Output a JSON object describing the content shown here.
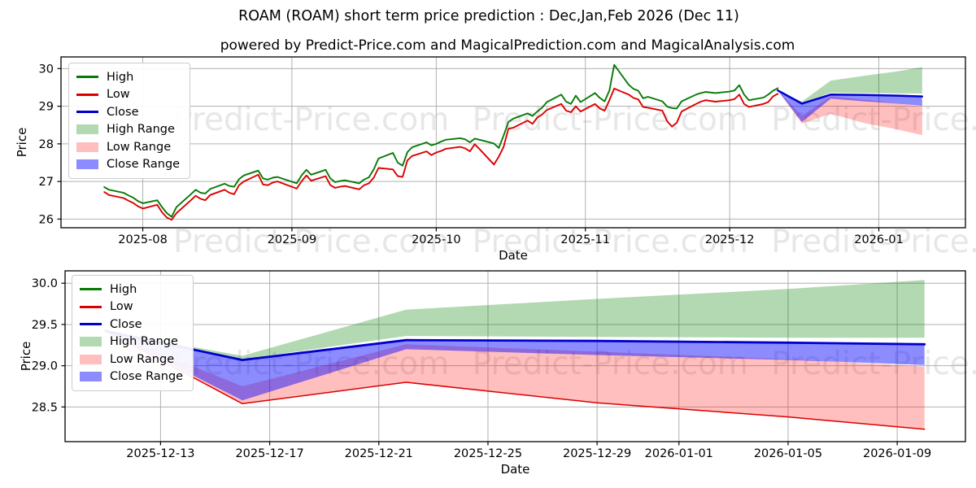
{
  "title": "ROAM (ROAM) short term price prediction : Dec,Jan,Feb 2026 (Dec 11)",
  "subtitle": "powered by Predict-Price.com and MagicalPrediction.com and MagicalAnalysis.com",
  "watermark": {
    "text": "Predict-Price.com",
    "repeats": 3,
    "color": "#e7e7e7"
  },
  "colors": {
    "high_line": "#077a07",
    "low_line": "#dd0000",
    "close_line": "#0000cc",
    "high_fill": "rgba(0,128,0,0.30)",
    "low_fill": "rgba(255,0,0,0.25)",
    "close_fill": "rgba(0,0,255,0.45)",
    "grid": "#b0b0b0",
    "spine": "#000000"
  },
  "legend": {
    "items": [
      {
        "label": "High",
        "type": "line",
        "color": "#077a07"
      },
      {
        "label": "Low",
        "type": "line",
        "color": "#dd0000"
      },
      {
        "label": "Close",
        "type": "line",
        "color": "#0000cc"
      },
      {
        "label": "High Range",
        "type": "patch",
        "color": "rgba(0,128,0,0.30)"
      },
      {
        "label": "Low Range",
        "type": "patch",
        "color": "rgba(255,0,0,0.25)"
      },
      {
        "label": "Close Range",
        "type": "patch",
        "color": "rgba(0,0,255,0.45)"
      }
    ]
  },
  "chart_data": {
    "type": "line",
    "historical": {
      "series_names": [
        "High",
        "Low"
      ],
      "dates": [
        "2025-07-24",
        "2025-07-25",
        "2025-07-28",
        "2025-07-29",
        "2025-07-30",
        "2025-07-31",
        "2025-08-01",
        "2025-08-04",
        "2025-08-05",
        "2025-08-06",
        "2025-08-07",
        "2025-08-08",
        "2025-08-11",
        "2025-08-12",
        "2025-08-13",
        "2025-08-14",
        "2025-08-15",
        "2025-08-18",
        "2025-08-19",
        "2025-08-20",
        "2025-08-21",
        "2025-08-22",
        "2025-08-25",
        "2025-08-26",
        "2025-08-27",
        "2025-08-28",
        "2025-08-29",
        "2025-09-02",
        "2025-09-03",
        "2025-09-04",
        "2025-09-05",
        "2025-09-08",
        "2025-09-09",
        "2025-09-10",
        "2025-09-11",
        "2025-09-12",
        "2025-09-15",
        "2025-09-16",
        "2025-09-17",
        "2025-09-18",
        "2025-09-19",
        "2025-09-22",
        "2025-09-23",
        "2025-09-24",
        "2025-09-25",
        "2025-09-26",
        "2025-09-29",
        "2025-09-30",
        "2025-10-01",
        "2025-10-02",
        "2025-10-03",
        "2025-10-06",
        "2025-10-07",
        "2025-10-08",
        "2025-10-09",
        "2025-10-10",
        "2025-10-13",
        "2025-10-14",
        "2025-10-15",
        "2025-10-16",
        "2025-10-17",
        "2025-10-20",
        "2025-10-21",
        "2025-10-22",
        "2025-10-23",
        "2025-10-24",
        "2025-10-27",
        "2025-10-28",
        "2025-10-29",
        "2025-10-30",
        "2025-10-31",
        "2025-11-03",
        "2025-11-04",
        "2025-11-05",
        "2025-11-06",
        "2025-11-07",
        "2025-11-10",
        "2025-11-11",
        "2025-11-12",
        "2025-11-13",
        "2025-11-14",
        "2025-11-17",
        "2025-11-18",
        "2025-11-19",
        "2025-11-20",
        "2025-11-21",
        "2025-11-24",
        "2025-11-25",
        "2025-11-26",
        "2025-11-28",
        "2025-12-01",
        "2025-12-02",
        "2025-12-03",
        "2025-12-04",
        "2025-12-05",
        "2025-12-08",
        "2025-12-09",
        "2025-12-10",
        "2025-12-11"
      ],
      "high": [
        26.85,
        26.78,
        26.7,
        26.63,
        26.57,
        26.48,
        26.42,
        26.5,
        26.32,
        26.16,
        26.06,
        26.32,
        26.66,
        26.78,
        26.7,
        26.68,
        26.8,
        26.94,
        26.88,
        26.86,
        27.06,
        27.16,
        27.29,
        27.08,
        27.05,
        27.1,
        27.12,
        26.95,
        27.16,
        27.31,
        27.18,
        27.31,
        27.08,
        26.98,
        27.01,
        27.03,
        26.95,
        27.05,
        27.11,
        27.32,
        27.61,
        27.76,
        27.5,
        27.42,
        27.78,
        27.91,
        28.04,
        27.96,
        28.0,
        28.06,
        28.11,
        28.15,
        28.12,
        28.04,
        28.14,
        28.11,
        28.01,
        27.89,
        28.22,
        28.58,
        28.67,
        28.81,
        28.74,
        28.86,
        28.96,
        29.11,
        29.31,
        29.12,
        29.06,
        29.28,
        29.11,
        29.35,
        29.22,
        29.13,
        29.42,
        30.1,
        29.57,
        29.46,
        29.41,
        29.21,
        29.25,
        29.13,
        28.99,
        28.95,
        28.94,
        29.13,
        29.31,
        29.35,
        29.38,
        29.35,
        29.39,
        29.42,
        29.56,
        29.31,
        29.16,
        29.23,
        29.31,
        29.41,
        29.48
      ],
      "low": [
        26.72,
        26.64,
        26.56,
        26.49,
        26.43,
        26.34,
        26.28,
        26.38,
        26.18,
        26.04,
        25.98,
        26.16,
        26.5,
        26.62,
        26.54,
        26.5,
        26.64,
        26.78,
        26.7,
        26.66,
        26.9,
        27.0,
        27.18,
        26.92,
        26.9,
        26.97,
        27.0,
        26.81,
        27.0,
        27.16,
        27.02,
        27.14,
        26.9,
        26.83,
        26.86,
        26.88,
        26.79,
        26.9,
        26.95,
        27.1,
        27.36,
        27.32,
        27.14,
        27.12,
        27.56,
        27.68,
        27.8,
        27.7,
        27.77,
        27.81,
        27.87,
        27.92,
        27.88,
        27.8,
        27.99,
        27.86,
        27.45,
        27.66,
        27.92,
        28.4,
        28.43,
        28.62,
        28.53,
        28.7,
        28.78,
        28.9,
        29.06,
        28.88,
        28.84,
        29.0,
        28.86,
        29.06,
        28.94,
        28.88,
        29.16,
        29.47,
        29.31,
        29.22,
        29.18,
        28.98,
        28.96,
        28.88,
        28.6,
        28.46,
        28.56,
        28.86,
        29.06,
        29.12,
        29.16,
        29.12,
        29.16,
        29.19,
        29.31,
        29.06,
        28.98,
        29.06,
        29.11,
        29.26,
        29.33
      ]
    },
    "prediction": {
      "dates": [
        "2025-12-11",
        "2025-12-16",
        "2025-12-22",
        "2025-12-29",
        "2026-01-05",
        "2026-01-10"
      ],
      "close": [
        29.42,
        29.07,
        29.31,
        29.3,
        29.28,
        29.26
      ],
      "high_range_top": [
        29.42,
        29.12,
        29.68,
        29.81,
        29.93,
        30.04
      ],
      "high_range_bottom": [
        29.42,
        29.08,
        29.36,
        29.35,
        29.34,
        29.34
      ],
      "close_range_top": [
        29.42,
        29.07,
        29.31,
        29.3,
        29.28,
        29.26
      ],
      "close_range_bottom": [
        29.42,
        28.58,
        29.2,
        29.13,
        29.07,
        29.01
      ],
      "low_range_top": [
        29.42,
        28.75,
        29.26,
        29.17,
        29.08,
        28.99
      ],
      "low_range_bottom": [
        29.42,
        28.54,
        28.8,
        28.55,
        28.38,
        28.23
      ]
    },
    "top_chart": {
      "xlabel": "Date",
      "ylabel": "Price",
      "xlim": [
        "2025-07-15",
        "2026-01-19"
      ],
      "ylim": [
        25.77,
        30.31
      ],
      "xticks": [
        {
          "date": "2025-08-01",
          "label": "2025-08"
        },
        {
          "date": "2025-09-01",
          "label": "2025-09"
        },
        {
          "date": "2025-10-01",
          "label": "2025-10"
        },
        {
          "date": "2025-11-01",
          "label": "2025-11"
        },
        {
          "date": "2025-12-01",
          "label": "2025-12"
        },
        {
          "date": "2026-01-01",
          "label": "2026-01"
        }
      ],
      "yticks": [
        {
          "v": 26,
          "label": "26"
        },
        {
          "v": 27,
          "label": "27"
        },
        {
          "v": 28,
          "label": "28"
        },
        {
          "v": 29,
          "label": "29"
        },
        {
          "v": 30,
          "label": "30"
        }
      ]
    },
    "bottom_chart": {
      "xlabel": "Date",
      "ylabel": "Price",
      "xlim": [
        "2025-12-09T12:00:00",
        "2026-01-11T12:00:00"
      ],
      "ylim": [
        28.08,
        30.15
      ],
      "xticks": [
        {
          "date": "2025-12-13",
          "label": "2025-12-13"
        },
        {
          "date": "2025-12-17",
          "label": "2025-12-17"
        },
        {
          "date": "2025-12-21",
          "label": "2025-12-21"
        },
        {
          "date": "2025-12-25",
          "label": "2025-12-25"
        },
        {
          "date": "2025-12-29",
          "label": "2025-12-29"
        },
        {
          "date": "2026-01-01",
          "label": "2026-01-01"
        },
        {
          "date": "2026-01-05",
          "label": "2026-01-05"
        },
        {
          "date": "2026-01-09",
          "label": "2026-01-09"
        }
      ],
      "yticks": [
        {
          "v": 28.5,
          "label": "28.5"
        },
        {
          "v": 29.0,
          "label": "29.0"
        },
        {
          "v": 29.5,
          "label": "29.5"
        },
        {
          "v": 30.0,
          "label": "30.0"
        }
      ]
    }
  }
}
